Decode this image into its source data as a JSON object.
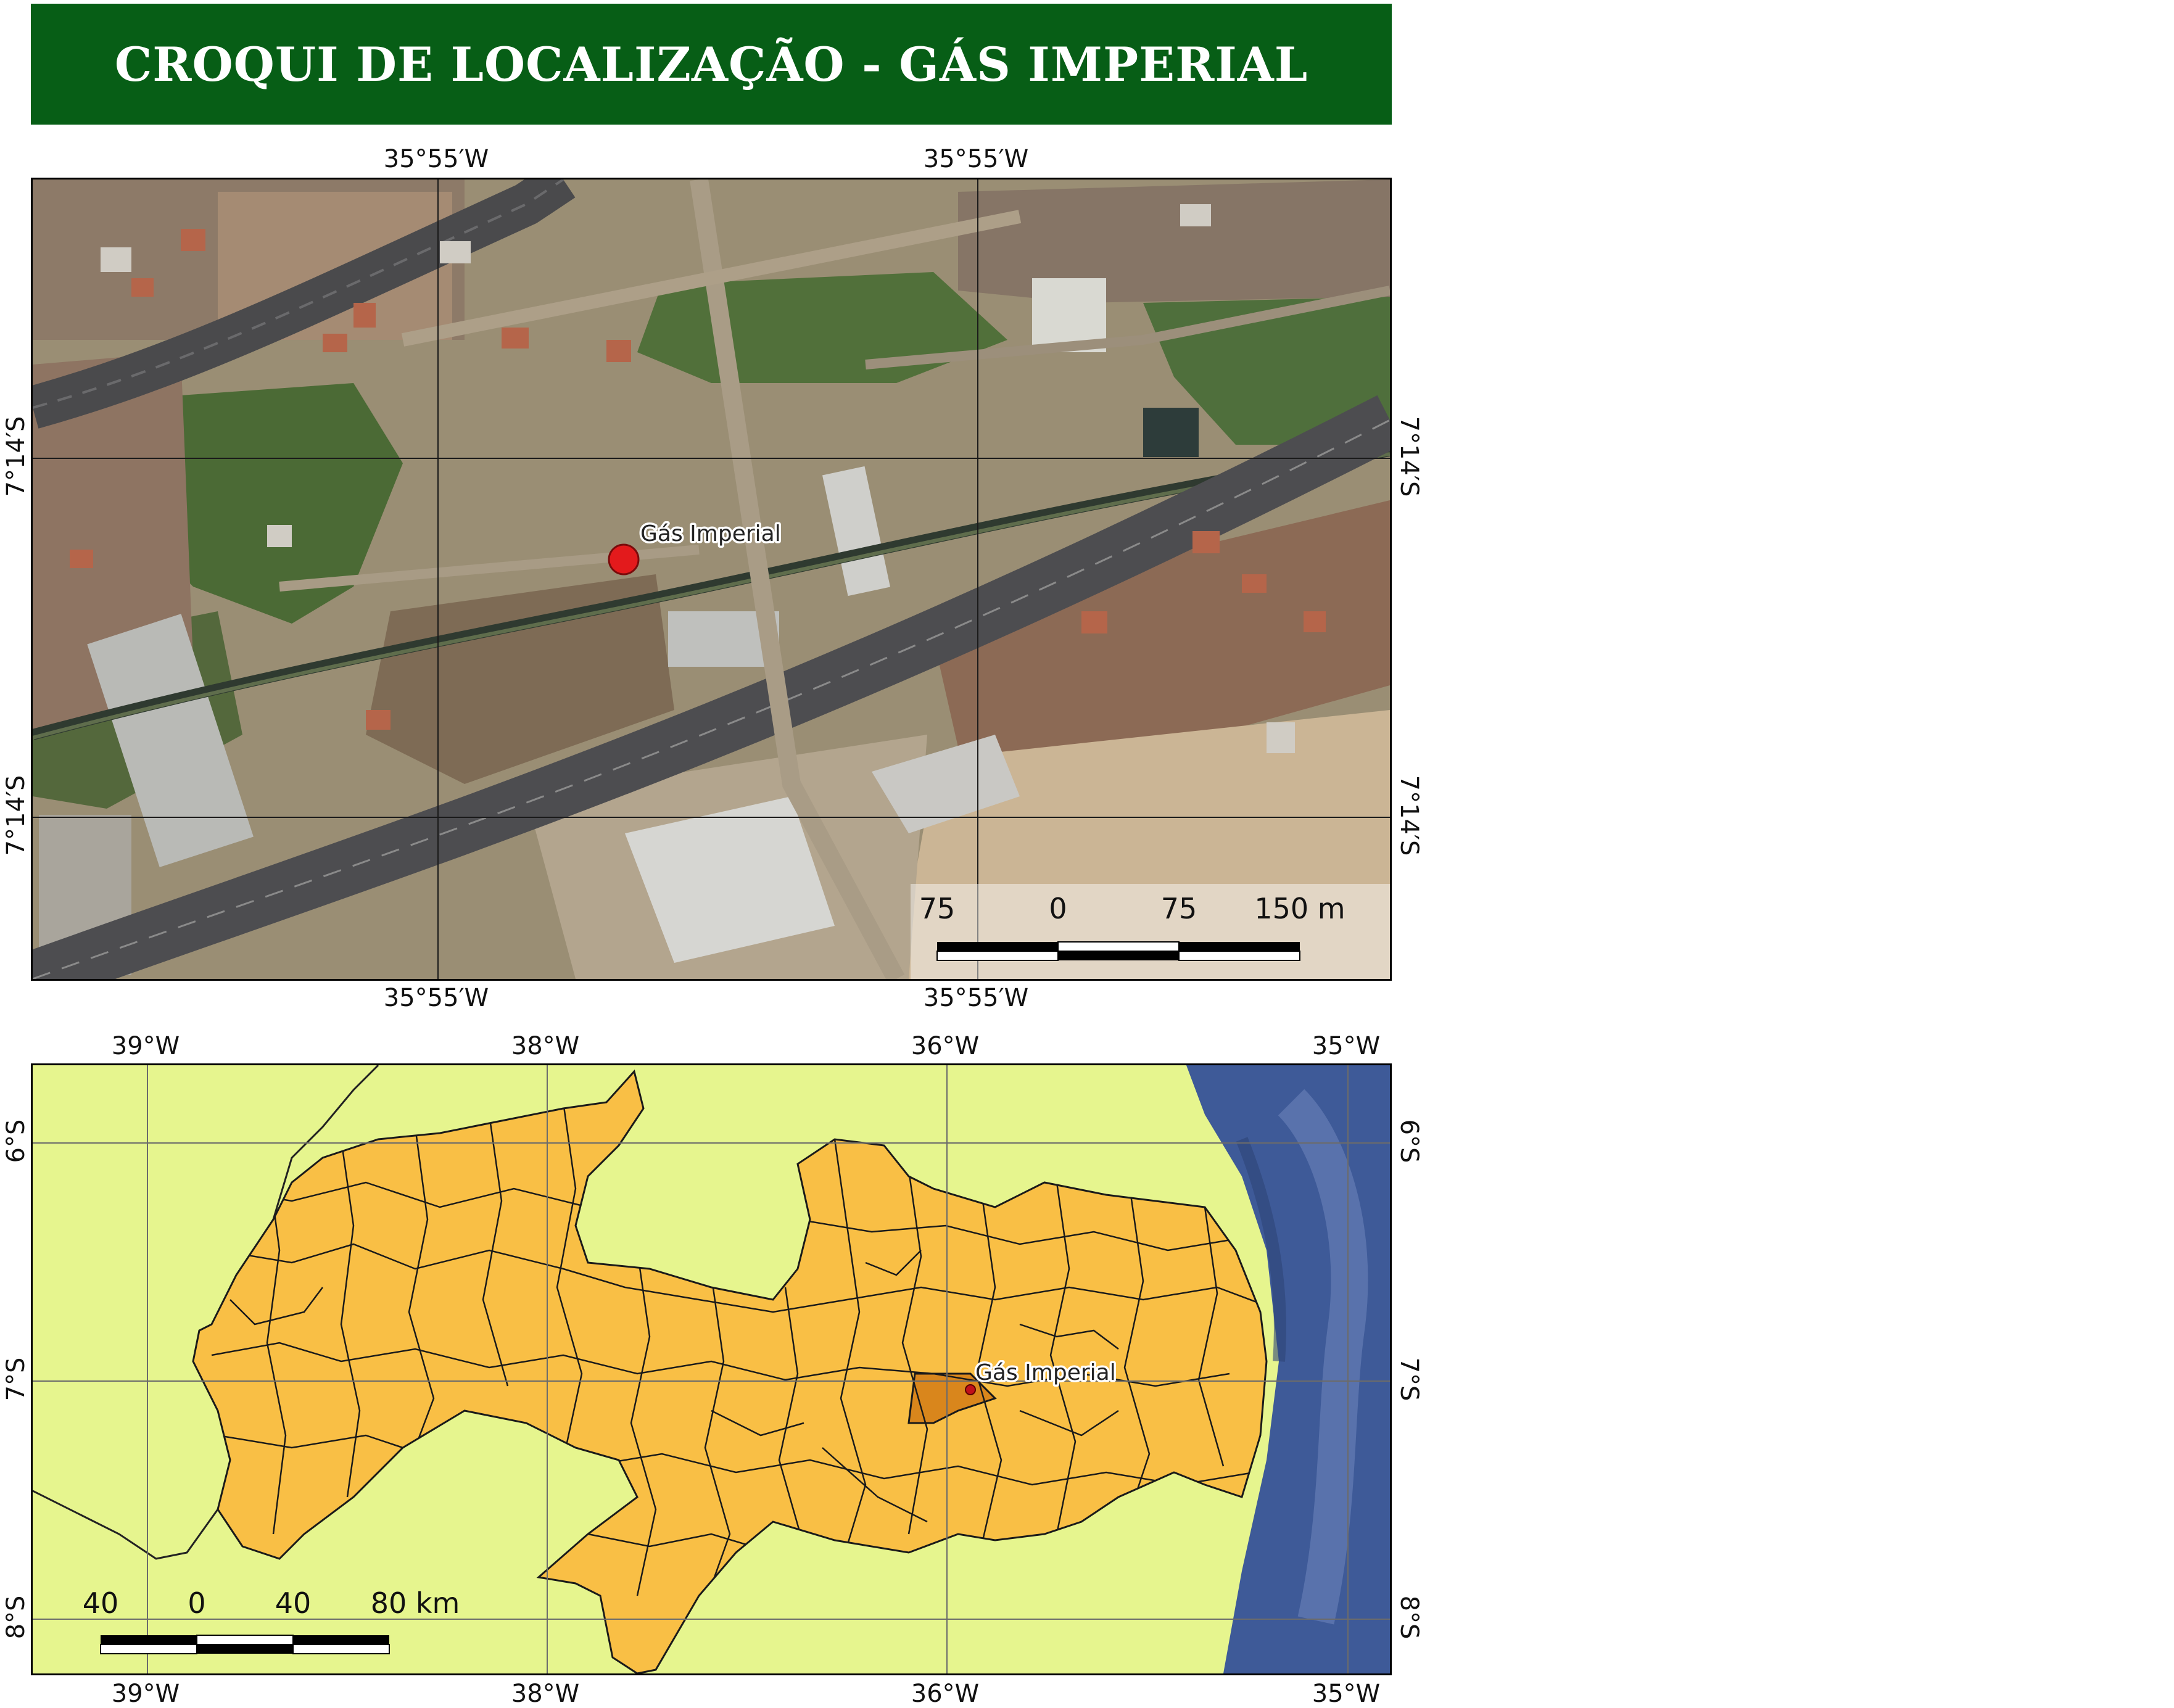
{
  "title": "CROQUI DE LOCALIZAÇÃO - GÁS IMPERIAL",
  "location_map": {
    "top_labels": [
      "35°55′W",
      "35°55′W"
    ],
    "bottom_labels": [
      "35°55′W",
      "35°55′W"
    ],
    "left_labels": [
      "7°14′S",
      "7°14′S"
    ],
    "right_labels": [
      "7°14′S",
      "7°14′S"
    ],
    "marker_label": "Gás Imperial",
    "marker_color": "#e31a1c",
    "scale_labels": [
      "75",
      "0",
      "75",
      "150 m"
    ]
  },
  "state_map": {
    "top_labels": [
      "39°W",
      "38°W",
      "36°W",
      "35°W"
    ],
    "bottom_labels": [
      "39°W",
      "38°W",
      "36°W",
      "35°W"
    ],
    "left_labels": [
      "6°S",
      "7°S",
      "8°S"
    ],
    "right_labels": [
      "6°S",
      "7°S",
      "8°S"
    ],
    "marker_label": "Gás Imperial",
    "scale_labels": [
      "40",
      "0",
      "40",
      "80 km"
    ],
    "colors": {
      "background": "#e6f58e",
      "municipality": "#f9bf45",
      "highlight": "#d9861c",
      "ocean": "#3e5a98",
      "marker": "#c0101a"
    }
  }
}
